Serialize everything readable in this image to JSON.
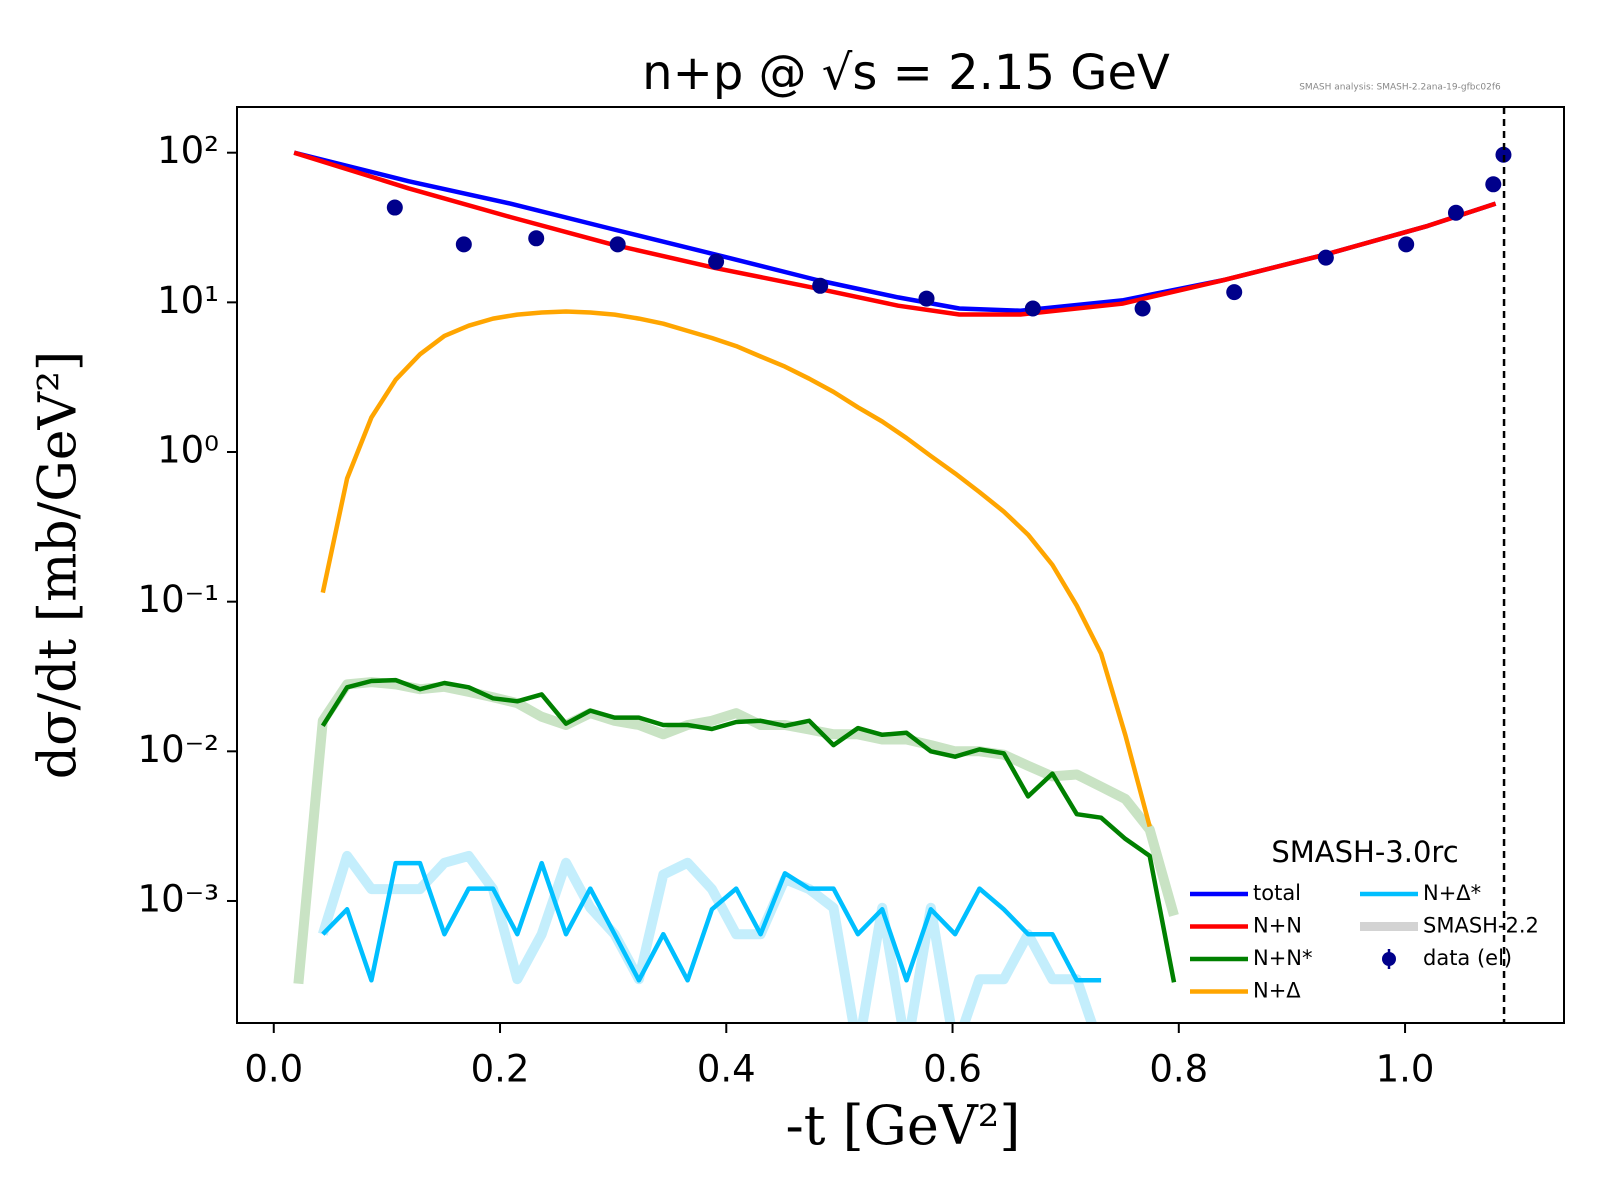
{
  "chart_data": {
    "type": "line",
    "title": "n+p @ √s = 2.15 GeV",
    "annotation": "SMASH analysis: SMASH-2.2ana-19-gfbc02f6",
    "xlabel": "-t [GeV²]",
    "ylabel": "dσ/dt [mb/GeV²]",
    "xlim": [
      -0.0325,
      1.1405
    ],
    "ylim": [
      0.000153,
      202
    ],
    "log_y": true,
    "xticks": [
      {
        "value": 0,
        "label": "0.0"
      },
      0.2,
      0.4,
      0.6,
      0.8,
      {
        "value": 1,
        "label": "1.0"
      }
    ],
    "yticks": [
      {
        "value": 0.001,
        "label": "10⁻³"
      },
      {
        "value": 0.01,
        "label": "10⁻²"
      },
      {
        "value": 0.1,
        "label": "10⁻¹"
      },
      {
        "value": 1,
        "label": "10⁰"
      },
      {
        "value": 10,
        "label": "10¹"
      },
      {
        "value": 100,
        "label": "10²"
      }
    ],
    "vline_x": 1.0875,
    "legend_title": "SMASH-3.0rc",
    "legend_position": "lower right",
    "series": [
      {
        "name": "total",
        "color": "#0000ff",
        "style": "line",
        "x": [
          0.018,
          0.119,
          0.209,
          0.299,
          0.39,
          0.48,
          0.552,
          0.606,
          0.66,
          0.75,
          0.84,
          0.93,
          1.02,
          1.08
        ],
        "values": [
          100,
          64.5,
          45.7,
          30.9,
          20.9,
          14.1,
          10.8,
          9.1,
          8.8,
          10.3,
          14.1,
          20.9,
          32.4,
          45.7
        ]
      },
      {
        "name": "N+N",
        "color": "#ff0000",
        "style": "line",
        "x": [
          0.018,
          0.119,
          0.209,
          0.299,
          0.39,
          0.48,
          0.552,
          0.606,
          0.66,
          0.75,
          0.84,
          0.93,
          1.02,
          1.08
        ],
        "values": [
          100,
          57.8,
          37.2,
          24.4,
          17.0,
          12.4,
          9.5,
          8.3,
          8.3,
          9.8,
          14.1,
          20.9,
          32.4,
          45.7
        ]
      },
      {
        "name": "N+N*",
        "color": "#008000",
        "style": "line",
        "x": [
          0.0433,
          0.0648,
          0.0863,
          0.1078,
          0.1293,
          0.1508,
          0.1723,
          0.1938,
          0.2153,
          0.2368,
          0.2583,
          0.2798,
          0.3013,
          0.3228,
          0.3443,
          0.3658,
          0.3873,
          0.4088,
          0.4303,
          0.4518,
          0.4733,
          0.4948,
          0.5163,
          0.5378,
          0.5593,
          0.5808,
          0.6023,
          0.6238,
          0.6453,
          0.6668,
          0.6883,
          0.7098,
          0.7313,
          0.7528,
          0.7743,
          0.7958
        ],
        "values": [
          0.0148,
          0.0268,
          0.0295,
          0.0299,
          0.026,
          0.0286,
          0.0268,
          0.0226,
          0.0216,
          0.024,
          0.0153,
          0.0187,
          0.0168,
          0.0168,
          0.015,
          0.015,
          0.0141,
          0.0157,
          0.016,
          0.0148,
          0.016,
          0.011,
          0.0143,
          0.0129,
          0.0133,
          0.01,
          0.0092,
          0.0103,
          0.0097,
          0.005,
          0.0071,
          0.0038,
          0.0036,
          0.0026,
          0.002,
          0.000286
        ]
      },
      {
        "name": "N+Δ",
        "color": "#ffa500",
        "style": "line",
        "x": [
          0.0433,
          0.0648,
          0.0863,
          0.1078,
          0.1293,
          0.1508,
          0.1723,
          0.1938,
          0.2153,
          0.2368,
          0.2583,
          0.2798,
          0.3013,
          0.3228,
          0.3443,
          0.3658,
          0.3873,
          0.4088,
          0.4303,
          0.4518,
          0.4733,
          0.4948,
          0.5163,
          0.5378,
          0.5593,
          0.5808,
          0.6023,
          0.6238,
          0.6453,
          0.6668,
          0.6883,
          0.7098,
          0.7313,
          0.7528,
          0.7743
        ],
        "values": [
          0.115,
          0.665,
          1.7,
          3.04,
          4.5,
          5.97,
          6.98,
          7.79,
          8.28,
          8.55,
          8.69,
          8.55,
          8.28,
          7.79,
          7.2,
          6.45,
          5.78,
          5.1,
          4.35,
          3.72,
          3.09,
          2.52,
          1.99,
          1.6,
          1.24,
          0.94,
          0.72,
          0.54,
          0.4,
          0.28,
          0.176,
          0.094,
          0.045,
          0.0128,
          0.00314
        ]
      },
      {
        "name": "N+Δ*",
        "color": "#00bfff",
        "style": "line",
        "x": [
          0.0433,
          0.0648,
          0.0863,
          0.1078,
          0.1293,
          0.1508,
          0.1723,
          0.1938,
          0.2153,
          0.2368,
          0.2583,
          0.2798,
          0.3013,
          0.3228,
          0.3443,
          0.3658,
          0.3873,
          0.4088,
          0.4303,
          0.4518,
          0.4733,
          0.4948,
          0.5163,
          0.5378,
          0.5593,
          0.5808,
          0.6023,
          0.6238,
          0.6453,
          0.6668,
          0.6883,
          0.7098,
          0.7313
        ],
        "values": [
          0.0006,
          0.00088,
          0.000295,
          0.00179,
          0.00179,
          0.0006,
          0.00121,
          0.00121,
          0.0006,
          0.00179,
          0.0006,
          0.00121,
          0.0006,
          0.000295,
          0.0006,
          0.000295,
          0.00088,
          0.00121,
          0.0006,
          0.00153,
          0.00121,
          0.00121,
          0.0006,
          0.00088,
          0.000295,
          0.00088,
          0.0006,
          0.00121,
          0.00088,
          0.0006,
          0.0006,
          0.000295,
          0.000295
        ]
      },
      {
        "name": "data (el)",
        "color": "#00008b",
        "style": "marker",
        "x": [
          0.107,
          0.168,
          0.232,
          0.304,
          0.391,
          0.483,
          0.577,
          0.671,
          0.768,
          0.849,
          0.93,
          1.001,
          1.045,
          1.078,
          1.087
        ],
        "values": [
          43,
          24.4,
          26.8,
          24.4,
          18.7,
          12.9,
          10.6,
          9.1,
          9.1,
          11.7,
          19.9,
          24.4,
          39.7,
          61.5,
          96.9
        ]
      }
    ],
    "reference": {
      "name": "SMASH-2.2",
      "color": "#d3d3d3",
      "series": [
        {
          "color": "#c9e3c4",
          "x": [
            0.0218,
            0.0433,
            0.0648,
            0.0863,
            0.1078,
            0.1293,
            0.1508,
            0.1723,
            0.1938,
            0.2153,
            0.2368,
            0.2583,
            0.2798,
            0.3013,
            0.3228,
            0.3443,
            0.3658,
            0.3873,
            0.4088,
            0.4303,
            0.4518,
            0.4733,
            0.4948,
            0.5163,
            0.5378,
            0.5593,
            0.5808,
            0.6023,
            0.6238,
            0.6453,
            0.6668,
            0.6883,
            0.7098,
            0.7313,
            0.7528,
            0.7743,
            0.7958
          ],
          "values": [
            0.00028,
            0.016,
            0.028,
            0.029,
            0.028,
            0.026,
            0.027,
            0.025,
            0.023,
            0.021,
            0.017,
            0.015,
            0.018,
            0.016,
            0.015,
            0.013,
            0.015,
            0.016,
            0.018,
            0.015,
            0.015,
            0.014,
            0.013,
            0.013,
            0.012,
            0.012,
            0.011,
            0.01,
            0.01,
            0.0095,
            0.008,
            0.0068,
            0.007,
            0.0058,
            0.0048,
            0.003,
            0.0008
          ]
        },
        {
          "color": "#c4eefc",
          "x": [
            0.0433,
            0.0648,
            0.0863,
            0.1078,
            0.1293,
            0.1508,
            0.1723,
            0.1938,
            0.2153,
            0.2368,
            0.2583,
            0.2798,
            0.3013,
            0.3228,
            0.3443,
            0.3658,
            0.3873,
            0.4088,
            0.4303,
            0.4518,
            0.4733,
            0.4948,
            0.5163,
            0.5378,
            0.5593,
            0.5808,
            0.6023,
            0.6238,
            0.6453,
            0.6668,
            0.6883,
            0.7098,
            0.7313
          ],
          "values": [
            0.0006,
            0.002,
            0.0012,
            0.0012,
            0.0012,
            0.0018,
            0.002,
            0.0012,
            0.0003,
            0.0006,
            0.0018,
            0.0009,
            0.0006,
            0.0003,
            0.0015,
            0.0018,
            0.0012,
            0.0006,
            0.0006,
            0.0014,
            0.0012,
            0.0009,
            0.0001,
            0.0009,
            0.0001,
            0.0009,
            0.0001,
            0.0003,
            0.0003,
            0.0006,
            0.0003,
            0.0003,
            0.0001
          ]
        }
      ]
    }
  }
}
